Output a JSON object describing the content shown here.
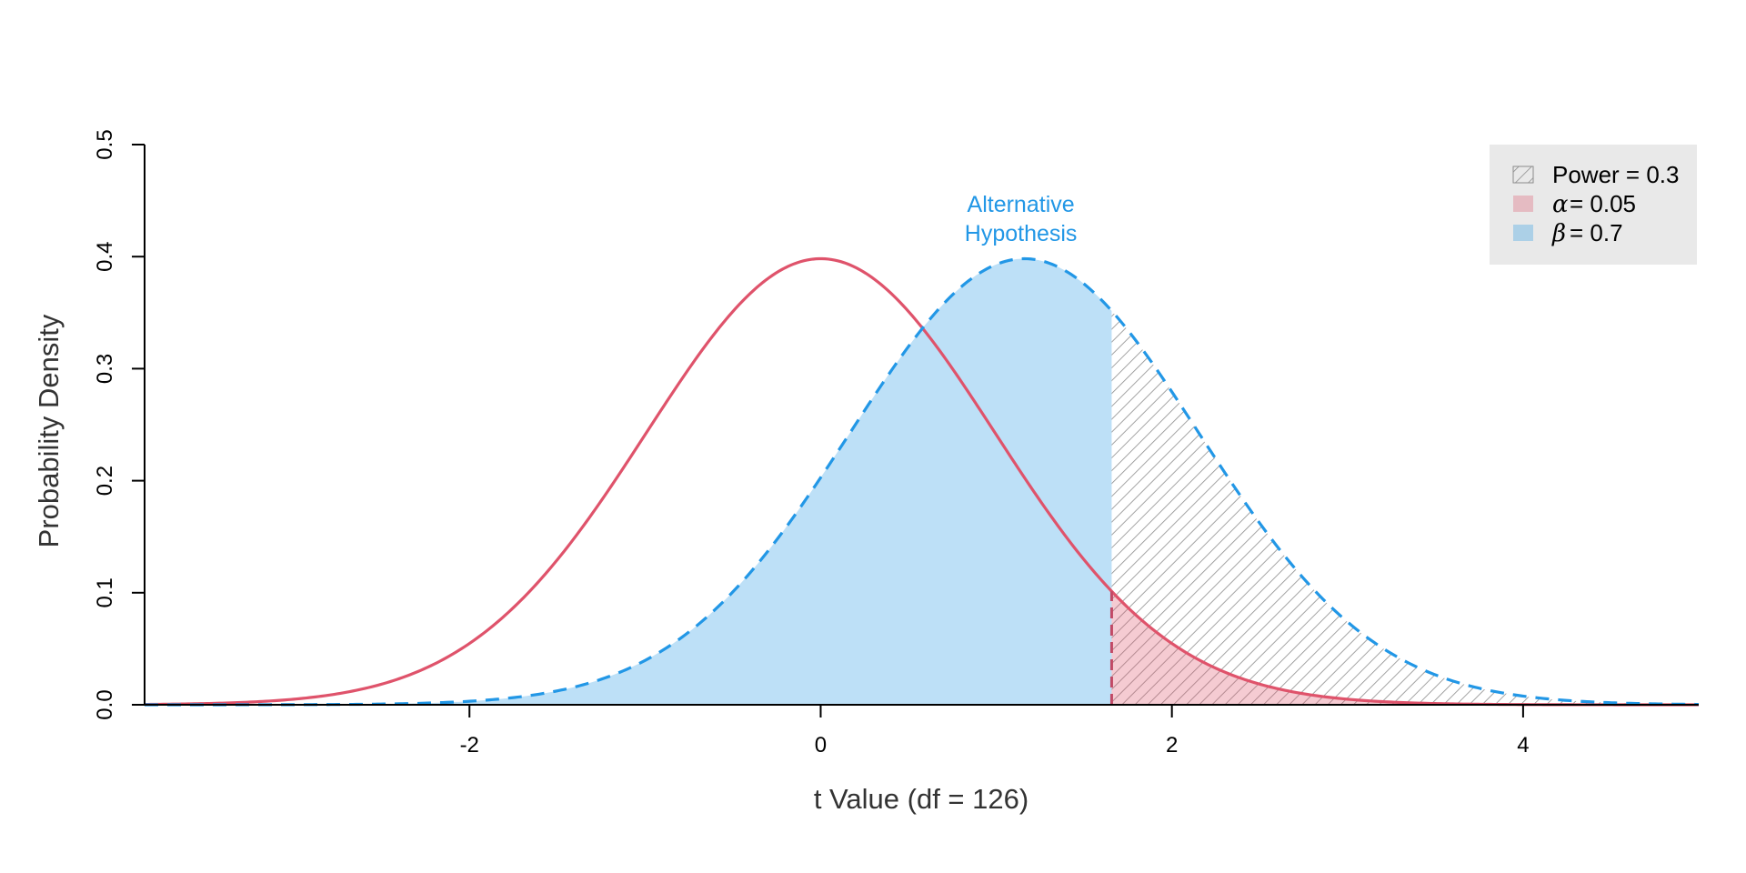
{
  "chart_data": {
    "type": "area",
    "xlabel": "t Value (df = 126)",
    "ylabel": "Probability Density",
    "xlim": [
      -3.85,
      5.0
    ],
    "ylim": [
      0,
      0.5
    ],
    "x_ticks": [
      -2,
      0,
      2,
      4
    ],
    "x_tick_labels": [
      "-2",
      "0",
      "2",
      "4"
    ],
    "y_ticks": [
      0.0,
      0.1,
      0.2,
      0.3,
      0.4,
      0.5
    ],
    "y_tick_labels": [
      "0.0",
      "0.1",
      "0.2",
      "0.3",
      "0.4",
      "0.5"
    ],
    "df": 126,
    "critical_value": 1.657,
    "grid": false,
    "series": [
      {
        "mean": 0.0,
        "style": "solid",
        "color": "#DF536B"
      },
      {
        "mean": 1.16,
        "style": "dashed",
        "color": "#2297E6"
      }
    ],
    "annotations": [
      {
        "text_lines": [
          "Alternative",
          "Hypothesis"
        ],
        "x": 1.14,
        "y": 0.44,
        "color": "#2297E6"
      }
    ],
    "legend": {
      "position": "top-right",
      "items": [
        {
          "symbol": "",
          "label": "Power = 0.3",
          "fill": "hatch"
        },
        {
          "symbol": "α",
          "label": "= 0.05",
          "fill": "#DF536B"
        },
        {
          "symbol": "β",
          "label": "= 0.7",
          "fill": "#2297E6"
        }
      ]
    },
    "values": {
      "power": 0.3,
      "alpha": 0.05,
      "beta": 0.7
    }
  }
}
